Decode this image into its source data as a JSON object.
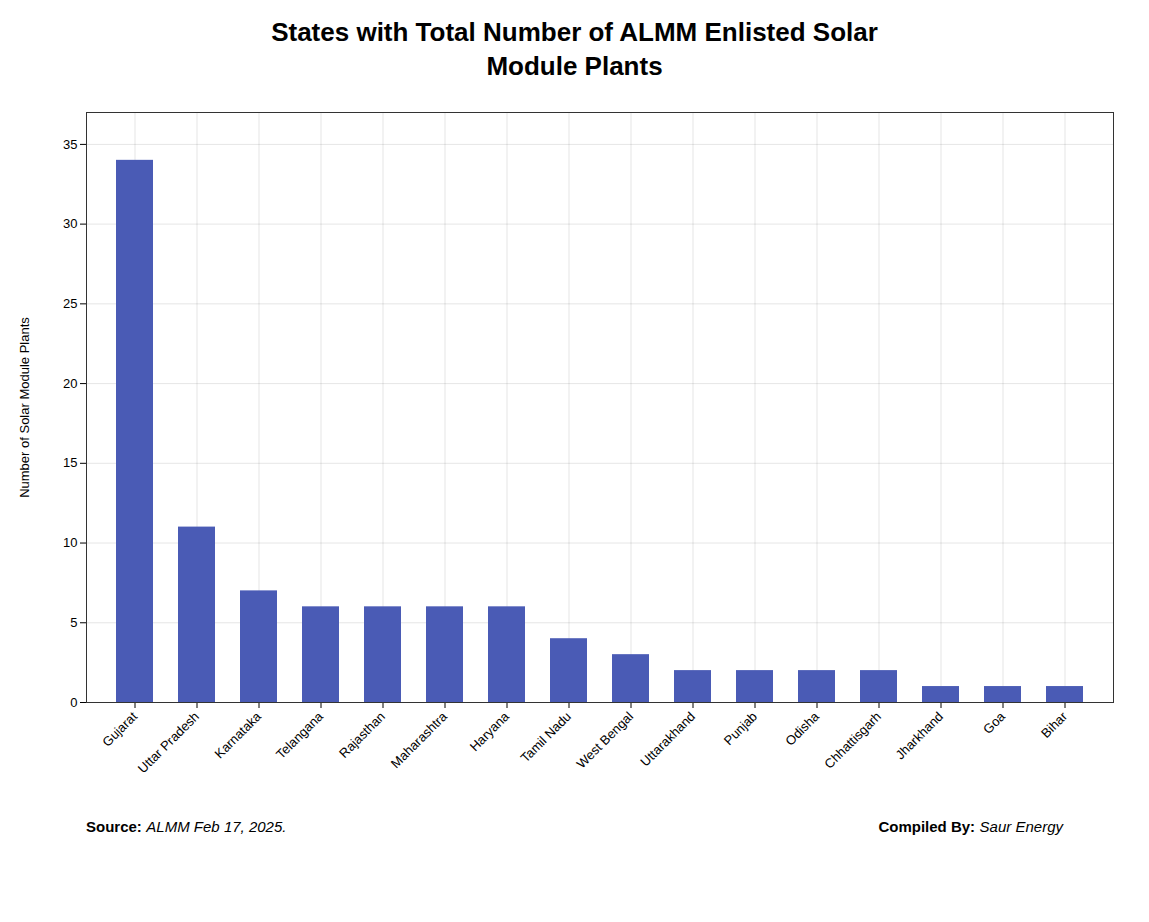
{
  "chart_data": {
    "type": "bar",
    "title": "States with Total Number of ALMM Enlisted Solar\nModule Plants",
    "y_label": "Number of Solar Module Plants",
    "categories": [
      "Gujarat",
      "Uttar Pradesh",
      "Karnataka",
      "Telangana",
      "Rajasthan",
      "Maharashtra",
      "Haryana",
      "Tamil Nadu",
      "West Bengal",
      "Uttarakhand",
      "Punjab",
      "Odisha",
      "Chhattisgarh",
      "Jharkhand",
      "Goa",
      "Bihar"
    ],
    "values": [
      34,
      11,
      7,
      6,
      6,
      6,
      6,
      4,
      3,
      2,
      2,
      2,
      2,
      1,
      1,
      1
    ],
    "color": "#4a5bb5",
    "ylim": [
      0,
      37
    ],
    "yticks": [
      0,
      5,
      10,
      15,
      20,
      25,
      30,
      35
    ],
    "grid": true,
    "annotations": [
      {
        "label": "Source:",
        "text": "ALMM Feb 17, 2025."
      },
      {
        "label": "Compiled By:",
        "text": "Saur Energy"
      }
    ]
  }
}
